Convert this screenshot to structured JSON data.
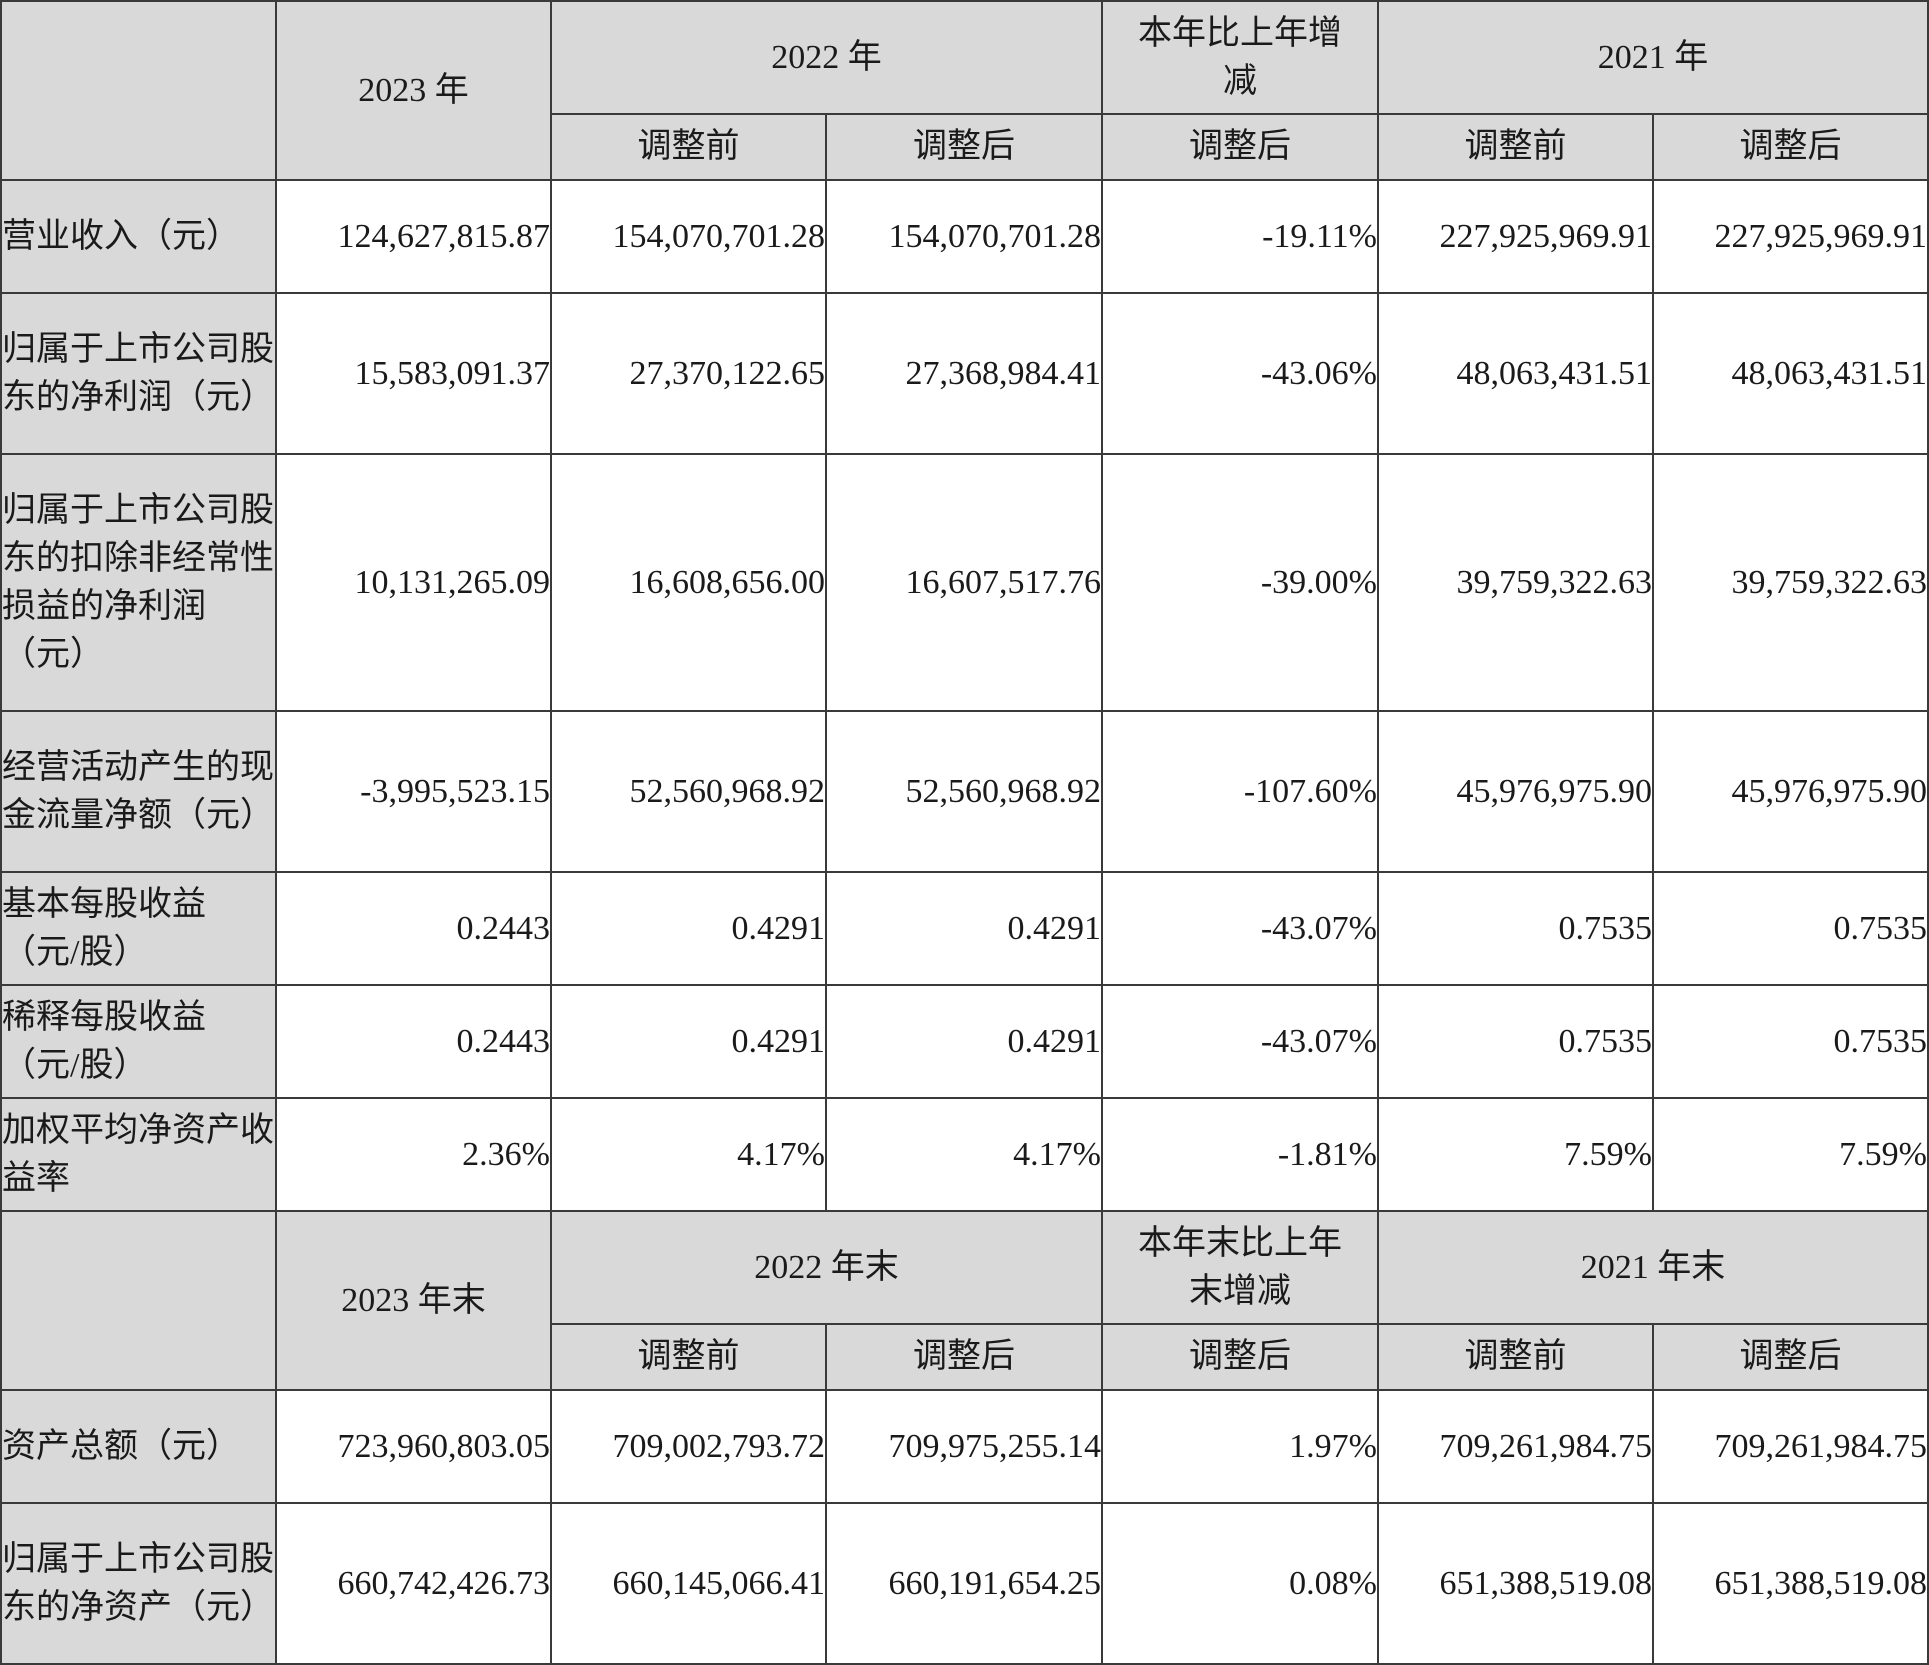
{
  "header1": {
    "year_2023": "2023 年",
    "year_2022": "2022 年",
    "change": "本年比上年增减",
    "year_2021": "2021 年",
    "before_adj": "调整前",
    "after_adj": "调整后"
  },
  "rows1": [
    {
      "label": "营业收入（元）",
      "v2023": "124,627,815.87",
      "v2022_before": "154,070,701.28",
      "v2022_after": "154,070,701.28",
      "change": "-19.11%",
      "v2021_before": "227,925,969.91",
      "v2021_after": "227,925,969.91"
    },
    {
      "label": "归属于上市公司股东的净利润（元）",
      "v2023": "15,583,091.37",
      "v2022_before": "27,370,122.65",
      "v2022_after": "27,368,984.41",
      "change": "-43.06%",
      "v2021_before": "48,063,431.51",
      "v2021_after": "48,063,431.51"
    },
    {
      "label": "归属于上市公司股东的扣除非经常性损益的净利润（元）",
      "v2023": "10,131,265.09",
      "v2022_before": "16,608,656.00",
      "v2022_after": "16,607,517.76",
      "change": "-39.00%",
      "v2021_before": "39,759,322.63",
      "v2021_after": "39,759,322.63"
    },
    {
      "label": "经营活动产生的现金流量净额（元）",
      "v2023": "-3,995,523.15",
      "v2022_before": "52,560,968.92",
      "v2022_after": "52,560,968.92",
      "change": "-107.60%",
      "v2021_before": "45,976,975.90",
      "v2021_after": "45,976,975.90"
    },
    {
      "label": "基本每股收益（元/股）",
      "v2023": "0.2443",
      "v2022_before": "0.4291",
      "v2022_after": "0.4291",
      "change": "-43.07%",
      "v2021_before": "0.7535",
      "v2021_after": "0.7535"
    },
    {
      "label": "稀释每股收益（元/股）",
      "v2023": "0.2443",
      "v2022_before": "0.4291",
      "v2022_after": "0.4291",
      "change": "-43.07%",
      "v2021_before": "0.7535",
      "v2021_after": "0.7535"
    },
    {
      "label": "加权平均净资产收益率",
      "v2023": "2.36%",
      "v2022_before": "4.17%",
      "v2022_after": "4.17%",
      "change": "-1.81%",
      "v2021_before": "7.59%",
      "v2021_after": "7.59%"
    }
  ],
  "header2": {
    "year_2023": "2023 年末",
    "year_2022": "2022 年末",
    "change": "本年末比上年末增减",
    "year_2021": "2021 年末",
    "before_adj": "调整前",
    "after_adj": "调整后"
  },
  "rows2": [
    {
      "label": "资产总额（元）",
      "v2023": "723,960,803.05",
      "v2022_before": "709,002,793.72",
      "v2022_after": "709,975,255.14",
      "change": "1.97%",
      "v2021_before": "709,261,984.75",
      "v2021_after": "709,261,984.75"
    },
    {
      "label": "归属于上市公司股东的净资产（元）",
      "v2023": "660,742,426.73",
      "v2022_before": "660,145,066.41",
      "v2022_after": "660,191,654.25",
      "change": "0.08%",
      "v2021_before": "651,388,519.08",
      "v2021_after": "651,388,519.08"
    }
  ]
}
